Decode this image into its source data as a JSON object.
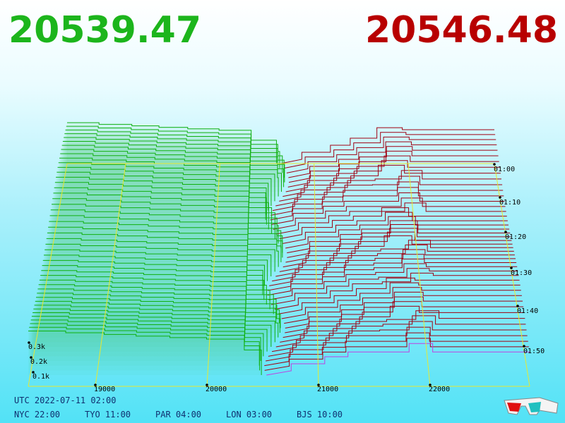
{
  "header": {
    "bid": "20539.47",
    "ask": "20546.48"
  },
  "axes": {
    "price_ticks": [
      19000,
      20000,
      21000,
      22000
    ],
    "depth_ticks": [
      "0.3k",
      "0.2k",
      "0.1k"
    ],
    "time_ticks": [
      "01:00",
      "01:10",
      "01:20",
      "01:30",
      "01:40",
      "01:50"
    ]
  },
  "footer": {
    "utc": "UTC 2022-07-11 02:00",
    "zones": [
      "NYC 22:00",
      "TYO 11:00",
      "PAR 04:00",
      "LON 03:00",
      "BJS 10:00"
    ]
  }
}
